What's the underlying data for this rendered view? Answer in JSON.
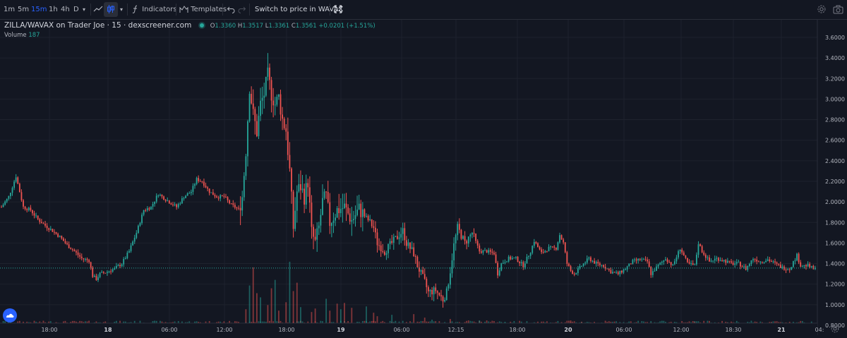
{
  "toolbar": {
    "intervals": [
      "1m",
      "5m",
      "15m",
      "1h",
      "4h",
      "D"
    ],
    "active_interval": "15m",
    "indicators_label": "Indicators",
    "templates_label": "Templates",
    "switch_label": "Switch to price in WAVAX"
  },
  "legend": {
    "symbol": "ZILLA/WAVAX on Trader Joe · 15 · dexscreener.com",
    "o_label": "O",
    "o": "1.3360",
    "h_label": "H",
    "h": "1.3517",
    "l_label": "L",
    "l": "1.3361",
    "c_label": "C",
    "c": "1.3561",
    "change": "+0.0201 (+1.51%)",
    "volume_label": "Volume",
    "volume_value": "187"
  },
  "colors": {
    "up": "#26a69a",
    "down": "#ef5350",
    "background": "#131722",
    "grid": "#1e222d"
  },
  "chart_data": {
    "type": "candlestick",
    "price_axis": {
      "ticks": [
        "3.6000",
        "3.4000",
        "3.2000",
        "3.0000",
        "2.8000",
        "2.6000",
        "2.4000",
        "2.2000",
        "2.0000",
        "1.8000",
        "1.6000",
        "1.4000",
        "1.2000",
        "1.0000",
        "0.8000"
      ],
      "ylim": [
        0.72,
        3.72
      ]
    },
    "time_axis": {
      "ticks": [
        "18:00",
        "18",
        "06:00",
        "12:00",
        "18:00",
        "19",
        "06:00",
        "12:15",
        "18:00",
        "20",
        "06:00",
        "12:00",
        "18:30",
        "21",
        "04:"
      ]
    },
    "last_price": "1.3561",
    "series": [
      {
        "name": "ZILLA/WAVAX",
        "close_points": [
          [
            0,
            1.95
          ],
          [
            4,
            2.05
          ],
          [
            8,
            2.25
          ],
          [
            12,
            1.95
          ],
          [
            16,
            1.92
          ],
          [
            20,
            1.83
          ],
          [
            24,
            1.77
          ],
          [
            28,
            1.72
          ],
          [
            32,
            1.66
          ],
          [
            36,
            1.58
          ],
          [
            40,
            1.52
          ],
          [
            44,
            1.45
          ],
          [
            48,
            1.43
          ],
          [
            50,
            1.28
          ],
          [
            52,
            1.25
          ],
          [
            54,
            1.3
          ],
          [
            58,
            1.32
          ],
          [
            62,
            1.35
          ],
          [
            66,
            1.4
          ],
          [
            70,
            1.52
          ],
          [
            74,
            1.7
          ],
          [
            78,
            1.92
          ],
          [
            82,
            1.95
          ],
          [
            86,
            2.08
          ],
          [
            88,
            2.05
          ],
          [
            92,
            2.0
          ],
          [
            96,
            1.95
          ],
          [
            100,
            2.05
          ],
          [
            104,
            2.1
          ],
          [
            107,
            2.22
          ],
          [
            110,
            2.2
          ],
          [
            114,
            2.1
          ],
          [
            118,
            2.05
          ],
          [
            122,
            2.05
          ],
          [
            126,
            1.97
          ],
          [
            130,
            1.93
          ],
          [
            132,
            2.05
          ],
          [
            134,
            2.5
          ],
          [
            136,
            3.12
          ],
          [
            138,
            2.85
          ],
          [
            140,
            2.68
          ],
          [
            142,
            2.95
          ],
          [
            144,
            3.05
          ],
          [
            146,
            3.23
          ],
          [
            148,
            3.05
          ],
          [
            150,
            2.95
          ],
          [
            152,
            3.02
          ],
          [
            154,
            2.8
          ],
          [
            156,
            2.7
          ],
          [
            158,
            2.3
          ],
          [
            160,
            1.75
          ],
          [
            162,
            2.1
          ],
          [
            164,
            2.15
          ],
          [
            166,
            2.05
          ],
          [
            168,
            2.2
          ],
          [
            170,
            1.7
          ],
          [
            172,
            1.6
          ],
          [
            174,
            1.75
          ],
          [
            176,
            2.0
          ],
          [
            178,
            2.05
          ],
          [
            180,
            1.8
          ],
          [
            184,
            1.92
          ],
          [
            188,
            1.95
          ],
          [
            192,
            1.82
          ],
          [
            196,
            1.93
          ],
          [
            200,
            1.85
          ],
          [
            204,
            1.75
          ],
          [
            206,
            1.6
          ],
          [
            210,
            1.52
          ],
          [
            214,
            1.6
          ],
          [
            218,
            1.68
          ],
          [
            220,
            1.72
          ],
          [
            222,
            1.6
          ],
          [
            226,
            1.5
          ],
          [
            228,
            1.38
          ],
          [
            230,
            1.3
          ],
          [
            232,
            1.22
          ],
          [
            234,
            1.12
          ],
          [
            238,
            1.14
          ],
          [
            242,
            1.05
          ],
          [
            244,
            1.12
          ],
          [
            246,
            1.33
          ],
          [
            248,
            1.58
          ],
          [
            250,
            1.75
          ],
          [
            254,
            1.6
          ],
          [
            258,
            1.7
          ],
          [
            262,
            1.52
          ],
          [
            266,
            1.52
          ],
          [
            270,
            1.5
          ],
          [
            272,
            1.3
          ],
          [
            274,
            1.4
          ],
          [
            278,
            1.45
          ],
          [
            282,
            1.45
          ],
          [
            286,
            1.38
          ],
          [
            290,
            1.52
          ],
          [
            292,
            1.62
          ],
          [
            296,
            1.5
          ],
          [
            300,
            1.55
          ],
          [
            304,
            1.55
          ],
          [
            306,
            1.68
          ],
          [
            308,
            1.6
          ],
          [
            310,
            1.4
          ],
          [
            312,
            1.33
          ],
          [
            314,
            1.3
          ],
          [
            318,
            1.38
          ],
          [
            322,
            1.45
          ],
          [
            326,
            1.4
          ],
          [
            330,
            1.38
          ],
          [
            334,
            1.32
          ],
          [
            338,
            1.3
          ],
          [
            342,
            1.35
          ],
          [
            346,
            1.42
          ],
          [
            350,
            1.44
          ],
          [
            354,
            1.42
          ],
          [
            356,
            1.3
          ],
          [
            360,
            1.38
          ],
          [
            364,
            1.45
          ],
          [
            368,
            1.38
          ],
          [
            372,
            1.55
          ],
          [
            376,
            1.4
          ],
          [
            380,
            1.38
          ],
          [
            382,
            1.6
          ],
          [
            384,
            1.52
          ],
          [
            388,
            1.42
          ],
          [
            392,
            1.45
          ],
          [
            396,
            1.43
          ],
          [
            400,
            1.4
          ],
          [
            404,
            1.4
          ],
          [
            408,
            1.35
          ],
          [
            412,
            1.45
          ],
          [
            416,
            1.42
          ],
          [
            420,
            1.44
          ],
          [
            424,
            1.4
          ],
          [
            428,
            1.36
          ],
          [
            432,
            1.35
          ],
          [
            436,
            1.48
          ],
          [
            438,
            1.38
          ],
          [
            442,
            1.38
          ],
          [
            446,
            1.34
          ]
        ]
      }
    ],
    "volume": {
      "ylim": [
        0,
        10
      ],
      "peaks": [
        [
          134,
          2.2
        ],
        [
          136,
          5.6
        ],
        [
          138,
          8.2
        ],
        [
          140,
          4.5
        ],
        [
          142,
          3.9
        ],
        [
          146,
          2.8
        ],
        [
          148,
          5.2
        ],
        [
          150,
          6.4
        ],
        [
          152,
          2.0
        ],
        [
          156,
          3.2
        ],
        [
          158,
          9.0
        ],
        [
          160,
          4.8
        ],
        [
          162,
          6.0
        ],
        [
          164,
          2.5
        ],
        [
          170,
          1.8
        ],
        [
          172,
          2.3
        ],
        [
          178,
          3.7
        ],
        [
          180,
          2.0
        ],
        [
          184,
          3.0
        ],
        [
          186,
          2.2
        ],
        [
          188,
          3.1
        ],
        [
          192,
          2.4
        ],
        [
          200,
          2.6
        ],
        [
          204,
          1.7
        ],
        [
          206,
          1.2
        ],
        [
          214,
          1.4
        ],
        [
          226,
          1.5
        ],
        [
          232,
          1.0
        ],
        [
          236,
          0.7
        ],
        [
          246,
          0.8
        ],
        [
          256,
          0.6
        ],
        [
          262,
          0.6
        ],
        [
          266,
          0.6
        ],
        [
          270,
          0.5
        ],
        [
          276,
          0.4
        ],
        [
          312,
          0.6
        ],
        [
          318,
          0.4
        ],
        [
          356,
          0.5
        ],
        [
          380,
          0.4
        ],
        [
          398,
          0.3
        ],
        [
          422,
          0.3
        ]
      ]
    }
  }
}
